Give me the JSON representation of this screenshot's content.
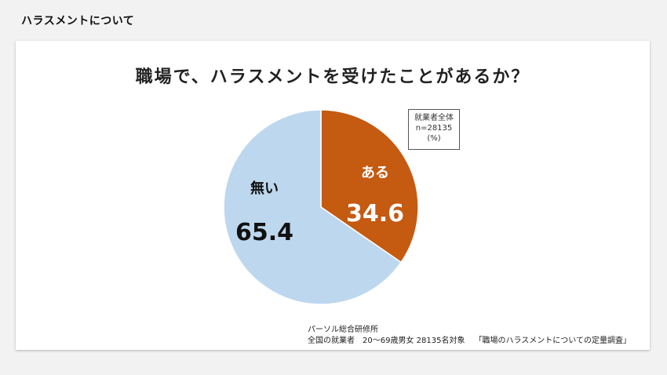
{
  "page": {
    "heading": "ハラスメントについて"
  },
  "chart_data": {
    "type": "pie",
    "title": "職場で、ハラスメントを受けたことがあるか？",
    "slices": [
      {
        "label": "ある",
        "value": 34.6,
        "value_text": "34.6",
        "color": "#c55a11"
      },
      {
        "label": "無い",
        "value": 65.4,
        "value_text": "65.4",
        "color": "#bdd7ee"
      }
    ],
    "legend": {
      "line1": "就業者全体",
      "line2": "n=28135",
      "line3": "(%)",
      "placement": "top-right"
    }
  },
  "source": {
    "org": "パーソル総合研修所",
    "detail": "全国の就業者　20〜69歳男女 28135名対象",
    "survey": "「職場のハラスメントについての定量調査」"
  }
}
